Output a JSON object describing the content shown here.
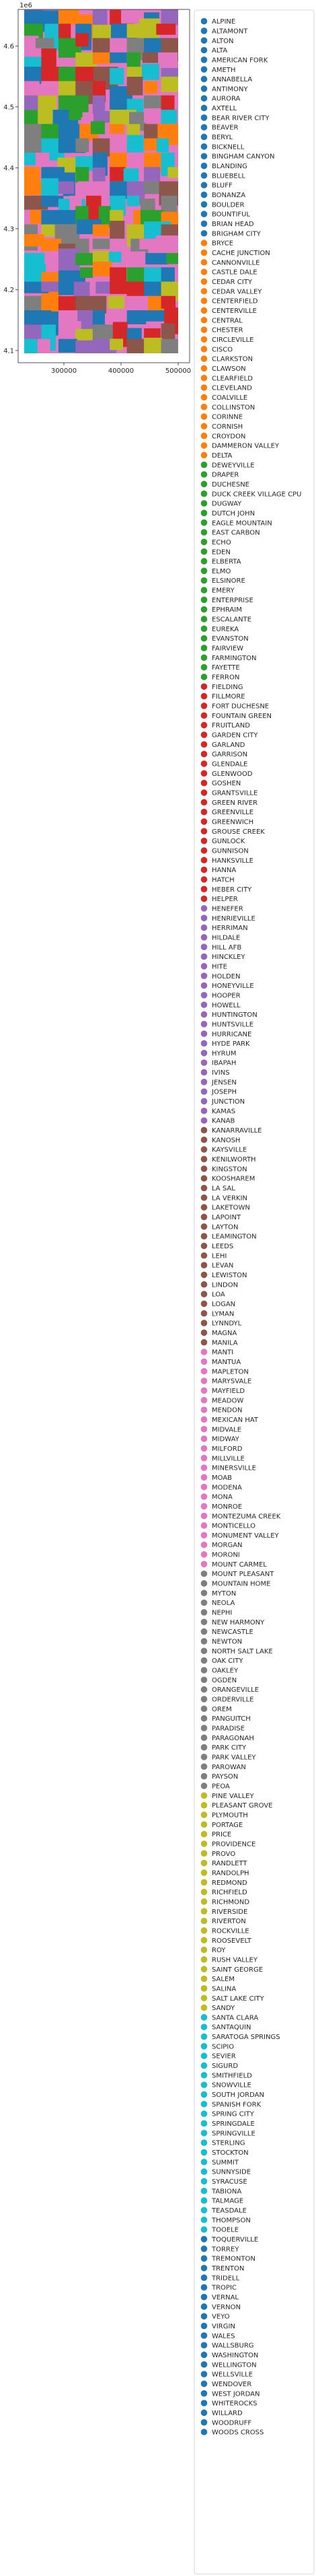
{
  "chart_data": {
    "type": "scatter",
    "title": "",
    "xlabel": "",
    "ylabel": "",
    "y_offset_text": "1e6",
    "xlim": [
      220000,
      520000
    ],
    "ylim": [
      4080000,
      4660000
    ],
    "x_ticks": [
      {
        "value": 300000,
        "label": "300000"
      },
      {
        "value": 400000,
        "label": "400000"
      },
      {
        "value": 500000,
        "label": "500000"
      }
    ],
    "y_ticks": [
      {
        "value": 4100000,
        "label": "4.1"
      },
      {
        "value": 4200000,
        "label": "4.2"
      },
      {
        "value": 4300000,
        "label": "4.3"
      },
      {
        "value": 4400000,
        "label": "4.4"
      },
      {
        "value": 4500000,
        "label": "4.5"
      },
      {
        "value": 4600000,
        "label": "4.6"
      }
    ],
    "grid": false,
    "legend_placement": "right, outside plot",
    "palette": [
      "#1f77b4",
      "#ff7f0e",
      "#2ca02c",
      "#d62728",
      "#9467bd",
      "#8c564b",
      "#e377c2",
      "#7f7f7f",
      "#bcbd22",
      "#17becf"
    ],
    "series": [
      "ALPINE",
      "ALTAMONT",
      "ALTON",
      "ALTA",
      "AMERICAN FORK",
      "AMETH",
      "ANNABELLA",
      "ANTIMONY",
      "AURORA",
      "AXTELL",
      "BEAR RIVER CITY",
      "BEAVER",
      "BERYL",
      "BICKNELL",
      "BINGHAM CANYON",
      "BLANDING",
      "BLUEBELL",
      "BLUFF",
      "BONANZA",
      "BOULDER",
      "BOUNTIFUL",
      "BRIAN HEAD",
      "BRIGHAM CITY",
      "BRYCE",
      "CACHE JUNCTION",
      "CANNONVILLE",
      "CASTLE DALE",
      "CEDAR CITY",
      "CEDAR VALLEY",
      "CENTERFIELD",
      "CENTERVILLE",
      "CENTRAL",
      "CHESTER",
      "CIRCLEVILLE",
      "CISCO",
      "CLARKSTON",
      "CLAWSON",
      "CLEARFIELD",
      "CLEVELAND",
      "COALVILLE",
      "COLLINSTON",
      "CORINNE",
      "CORNISH",
      "CROYDON",
      "DAMMERON VALLEY",
      "DELTA",
      "DEWEYVILLE",
      "DRAPER",
      "DUCHESNE",
      "DUCK CREEK VILLAGE CPU",
      "DUGWAY",
      "DUTCH JOHN",
      "EAGLE MOUNTAIN",
      "EAST CARBON",
      "ECHO",
      "EDEN",
      "ELBERTA",
      "ELMO",
      "ELSINORE",
      "EMERY",
      "ENTERPRISE",
      "EPHRAIM",
      "ESCALANTE",
      "EUREKA",
      "EVANSTON",
      "FAIRVIEW",
      "FARMINGTON",
      "FAYETTE",
      "FERRON",
      "FIELDING",
      "FILLMORE",
      "FORT DUCHESNE",
      "FOUNTAIN GREEN",
      "FRUITLAND",
      "GARDEN CITY",
      "GARLAND",
      "GARRISON",
      "GLENDALE",
      "GLENWOOD",
      "GOSHEN",
      "GRANTSVILLE",
      "GREEN RIVER",
      "GREENVILLE",
      "GREENWICH",
      "GROUSE CREEK",
      "GUNLOCK",
      "GUNNISON",
      "HANKSVILLE",
      "HANNA",
      "HATCH",
      "HEBER CITY",
      "HELPER",
      "HENEFER",
      "HENRIEVILLE",
      "HERRIMAN",
      "HILDALE",
      "HILL AFB",
      "HINCKLEY",
      "HITE",
      "HOLDEN",
      "HONEYVILLE",
      "HOOPER",
      "HOWELL",
      "HUNTINGTON",
      "HUNTSVILLE",
      "HURRICANE",
      "HYDE PARK",
      "HYRUM",
      "IBAPAH",
      "IVINS",
      "JENSEN",
      "JOSEPH",
      "JUNCTION",
      "KAMAS",
      "KANAB",
      "KANARRAVILLE",
      "KANOSH",
      "KAYSVILLE",
      "KENILWORTH",
      "KINGSTON",
      "KOOSHAREM",
      "LA SAL",
      "LA VERKIN",
      "LAKETOWN",
      "LAPOINT",
      "LAYTON",
      "LEAMINGTON",
      "LEEDS",
      "LEHI",
      "LEVAN",
      "LEWISTON",
      "LINDON",
      "LOA",
      "LOGAN",
      "LYMAN",
      "LYNNDYL",
      "MAGNA",
      "MANILA",
      "MANTI",
      "MANTUA",
      "MAPLETON",
      "MARYSVALE",
      "MAYFIELD",
      "MEADOW",
      "MENDON",
      "MEXICAN HAT",
      "MIDVALE",
      "MIDWAY",
      "MILFORD",
      "MILLVILLE",
      "MINERSVILLE",
      "MOAB",
      "MODENA",
      "MONA",
      "MONROE",
      "MONTEZUMA CREEK",
      "MONTICELLO",
      "MONUMENT VALLEY",
      "MORGAN",
      "MORONI",
      "MOUNT CARMEL",
      "MOUNT PLEASANT",
      "MOUNTAIN HOME",
      "MYTON",
      "NEOLA",
      "NEPHI",
      "NEW HARMONY",
      "NEWCASTLE",
      "NEWTON",
      "NORTH SALT LAKE",
      "OAK CITY",
      "OAKLEY",
      "OGDEN",
      "ORANGEVILLE",
      "ORDERVILLE",
      "OREM",
      "PANGUITCH",
      "PARADISE",
      "PARAGONAH",
      "PARK CITY",
      "PARK VALLEY",
      "PAROWAN",
      "PAYSON",
      "PEOA",
      "PINE VALLEY",
      "PLEASANT GROVE",
      "PLYMOUTH",
      "PORTAGE",
      "PRICE",
      "PROVIDENCE",
      "PROVO",
      "RANDLETT",
      "RANDOLPH",
      "REDMOND",
      "RICHFIELD",
      "RICHMOND",
      "RIVERSIDE",
      "RIVERTON",
      "ROCKVILLE",
      "ROOSEVELT",
      "ROY",
      "RUSH VALLEY",
      "SAINT GEORGE",
      "SALEM",
      "SALINA",
      "SALT LAKE CITY",
      "SANDY",
      "SANTA CLARA",
      "SANTAQUIN",
      "SARATOGA SPRINGS",
      "SCIPIO",
      "SEVIER",
      "SIGURD",
      "SMITHFIELD",
      "SNOWVILLE",
      "SOUTH JORDAN",
      "SPANISH FORK",
      "SPRING CITY",
      "SPRINGDALE",
      "SPRINGVILLE",
      "STERLING",
      "STOCKTON",
      "SUMMIT",
      "SUNNYSIDE",
      "SYRACUSE",
      "TABIONA",
      "TALMAGE",
      "TEASDALE",
      "THOMPSON",
      "TOOELE",
      "TOQUERVILLE",
      "TORREY",
      "TREMONTON",
      "TRENTON",
      "TRIDELL",
      "TROPIC",
      "VERNAL",
      "VERNON",
      "VEYO",
      "VIRGIN",
      "WALES",
      "WALLSBURG",
      "WASHINGTON",
      "WELLINGTON",
      "WELLSVILLE",
      "WENDOVER",
      "WEST JORDAN",
      "WHITEROCKS",
      "WILLARD",
      "WOODRUFF",
      "WOODS CROSS"
    ]
  }
}
